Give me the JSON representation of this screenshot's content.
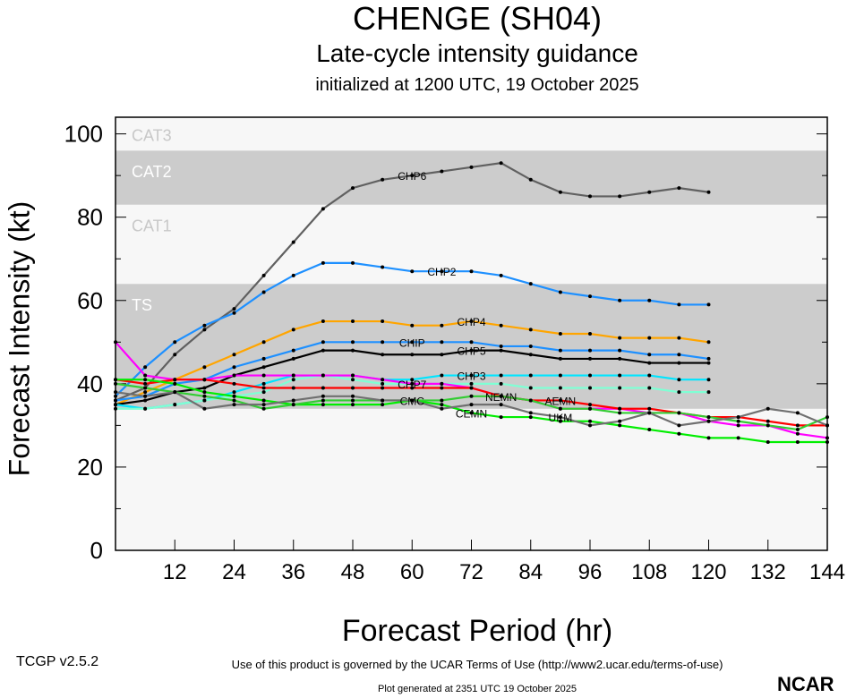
{
  "title": "CHENGE (SH04)",
  "subtitle": "Late-cycle intensity guidance",
  "subtitle2": "initialized at 1200 UTC, 19 October 2025",
  "footer": {
    "version": "TCGP v2.5.2",
    "terms": "Use of this product is governed by the UCAR Terms of Use (http://www2.ucar.edu/terms-of-use)",
    "generated": "Plot generated at 2351 UTC   19 October 2025",
    "logo": "NCAR"
  },
  "chart_data": {
    "type": "line",
    "title": "CHENGE (SH04)",
    "xlabel": "Forecast Period (hr)",
    "ylabel": "Forecast Intensity (kt)",
    "xlim": [
      0,
      144
    ],
    "ylim": [
      0,
      104
    ],
    "xticks": [
      12,
      24,
      36,
      48,
      60,
      72,
      84,
      96,
      108,
      120,
      132,
      144
    ],
    "yticks": [
      0,
      20,
      40,
      60,
      80,
      100
    ],
    "bands": [
      {
        "label": "TS",
        "from": 34,
        "to": 64,
        "color": "#cccccc"
      },
      {
        "label": "CAT1",
        "from": 64,
        "to": 83,
        "color": "#f7f7f7"
      },
      {
        "label": "CAT2",
        "from": 83,
        "to": 96,
        "color": "#cccccc"
      },
      {
        "label": "CAT3",
        "from": 96,
        "to": 104,
        "color": "#f7f7f7"
      }
    ],
    "series": [
      {
        "name": "CHP6",
        "color": "#606060",
        "x": [
          0,
          6,
          12,
          18,
          24,
          30,
          36,
          42,
          48,
          54,
          60,
          66,
          72,
          78,
          84,
          90,
          96,
          102,
          108,
          114,
          120
        ],
        "values": [
          36,
          39,
          47,
          53,
          58,
          66,
          74,
          82,
          87,
          89,
          90,
          91,
          92,
          93,
          89,
          86,
          85,
          85,
          86,
          87,
          86
        ]
      },
      {
        "name": "CHP2",
        "color": "#1e90ff",
        "x": [
          0,
          6,
          12,
          18,
          24,
          30,
          36,
          42,
          48,
          54,
          60,
          66,
          72,
          78,
          84,
          90,
          96,
          102,
          108,
          114,
          120
        ],
        "values": [
          37,
          44,
          50,
          54,
          57,
          62,
          66,
          69,
          69,
          68,
          67,
          67,
          67,
          66,
          64,
          62,
          61,
          60,
          60,
          59,
          59
        ]
      },
      {
        "name": "CHP4",
        "color": "#ffa500",
        "x": [
          0,
          6,
          12,
          18,
          24,
          30,
          36,
          42,
          48,
          54,
          60,
          66,
          72,
          78,
          84,
          90,
          96,
          102,
          108,
          114,
          120
        ],
        "values": [
          35,
          38,
          41,
          44,
          47,
          50,
          53,
          55,
          55,
          55,
          54,
          54,
          55,
          54,
          53,
          52,
          52,
          51,
          51,
          51,
          50
        ]
      },
      {
        "name": "CHIP",
        "color": "#1e90ff",
        "x": [
          0,
          6,
          12,
          18,
          24,
          30,
          36,
          42,
          48,
          54,
          60,
          66,
          72,
          78,
          84,
          90,
          96,
          102,
          108,
          114,
          120
        ],
        "values": [
          36,
          37,
          40,
          41,
          44,
          46,
          48,
          50,
          50,
          50,
          50,
          50,
          50,
          49,
          49,
          48,
          48,
          48,
          47,
          47,
          46
        ]
      },
      {
        "name": "CHP5",
        "color": "#000000",
        "x": [
          0,
          6,
          12,
          18,
          24,
          30,
          36,
          42,
          48,
          54,
          60,
          66,
          72,
          78,
          84,
          90,
          96,
          102,
          108,
          114,
          120
        ],
        "values": [
          35,
          36,
          38,
          39,
          42,
          44,
          46,
          48,
          48,
          47,
          47,
          47,
          48,
          48,
          47,
          46,
          46,
          46,
          45,
          45,
          45
        ]
      },
      {
        "name": "CHP3",
        "color": "#00e5ff",
        "x": [
          0,
          6,
          12,
          18,
          24,
          30,
          36,
          42,
          48,
          54,
          60,
          66,
          72,
          78,
          84,
          90,
          96,
          102,
          108,
          114,
          120
        ],
        "values": [
          35,
          34,
          35,
          36,
          38,
          40,
          42,
          42,
          42,
          41,
          41,
          42,
          42,
          42,
          42,
          42,
          42,
          42,
          42,
          41,
          41
        ]
      },
      {
        "name": "CHP7",
        "color": "#7fffd4",
        "x": [
          0,
          6,
          12,
          18,
          24,
          30,
          36,
          42,
          48,
          54,
          60,
          66,
          72,
          78,
          84,
          90,
          96,
          102,
          108,
          114,
          120
        ],
        "values": [
          34,
          34,
          35,
          36,
          37,
          38,
          41,
          42,
          41,
          40,
          40,
          40,
          40,
          40,
          39,
          39,
          39,
          39,
          39,
          38,
          38
        ]
      },
      {
        "name": "NEMN",
        "color": "#ff00ff",
        "x": [
          0,
          6,
          12,
          18,
          24,
          30,
          36,
          42,
          48,
          54,
          60,
          66,
          72,
          78,
          84,
          90,
          96,
          102,
          108,
          114,
          120,
          126,
          132,
          138,
          144
        ],
        "values": [
          50,
          42,
          41,
          41,
          42,
          42,
          42,
          42,
          42,
          41,
          40,
          40,
          39,
          37,
          36,
          34,
          34,
          34,
          33,
          33,
          31,
          30,
          30,
          28,
          27
        ]
      },
      {
        "name": "AEMN",
        "color": "#ff0000",
        "x": [
          0,
          6,
          12,
          18,
          24,
          30,
          36,
          42,
          48,
          54,
          60,
          66,
          72,
          78,
          84,
          90,
          96,
          102,
          108,
          114,
          120,
          126,
          132,
          138,
          144
        ],
        "values": [
          41,
          40,
          41,
          41,
          40,
          39,
          39,
          39,
          39,
          39,
          39,
          39,
          39,
          37,
          36,
          36,
          35,
          34,
          34,
          33,
          32,
          32,
          31,
          30,
          30
        ]
      },
      {
        "name": "CEMN",
        "color": "#00ee00",
        "x": [
          0,
          6,
          12,
          18,
          24,
          30,
          36,
          42,
          48,
          54,
          60,
          66,
          72,
          78,
          84,
          90,
          96,
          102,
          108,
          114,
          120,
          126,
          132,
          138,
          144
        ],
        "values": [
          41,
          41,
          40,
          38,
          37,
          36,
          35,
          35,
          35,
          35,
          36,
          35,
          33,
          32,
          32,
          31,
          31,
          30,
          29,
          28,
          27,
          27,
          26,
          26,
          26
        ]
      },
      {
        "name": "CMC",
        "color": "#33cc33",
        "x": [
          0,
          6,
          12,
          18,
          24,
          30,
          36,
          42,
          48,
          54,
          60,
          66,
          72,
          78,
          84,
          90,
          96,
          102,
          108,
          114,
          120,
          126,
          132,
          138,
          144
        ],
        "values": [
          40,
          39,
          38,
          37,
          36,
          34,
          35,
          36,
          36,
          36,
          36,
          36,
          37,
          37,
          36,
          34,
          34,
          33,
          33,
          33,
          32,
          31,
          30,
          29,
          32
        ]
      },
      {
        "name": "UKM",
        "color": "#707070",
        "x": [
          0,
          6,
          12,
          18,
          24,
          30,
          36,
          42,
          48,
          54,
          60,
          66,
          72,
          78,
          84,
          90,
          96,
          102,
          108,
          114,
          120,
          126,
          132,
          138,
          144
        ],
        "values": [
          38,
          37,
          38,
          34,
          35,
          35,
          36,
          37,
          37,
          36,
          36,
          34,
          35,
          35,
          33,
          32,
          30,
          31,
          33,
          30,
          31,
          32,
          34,
          33,
          30
        ]
      }
    ]
  }
}
